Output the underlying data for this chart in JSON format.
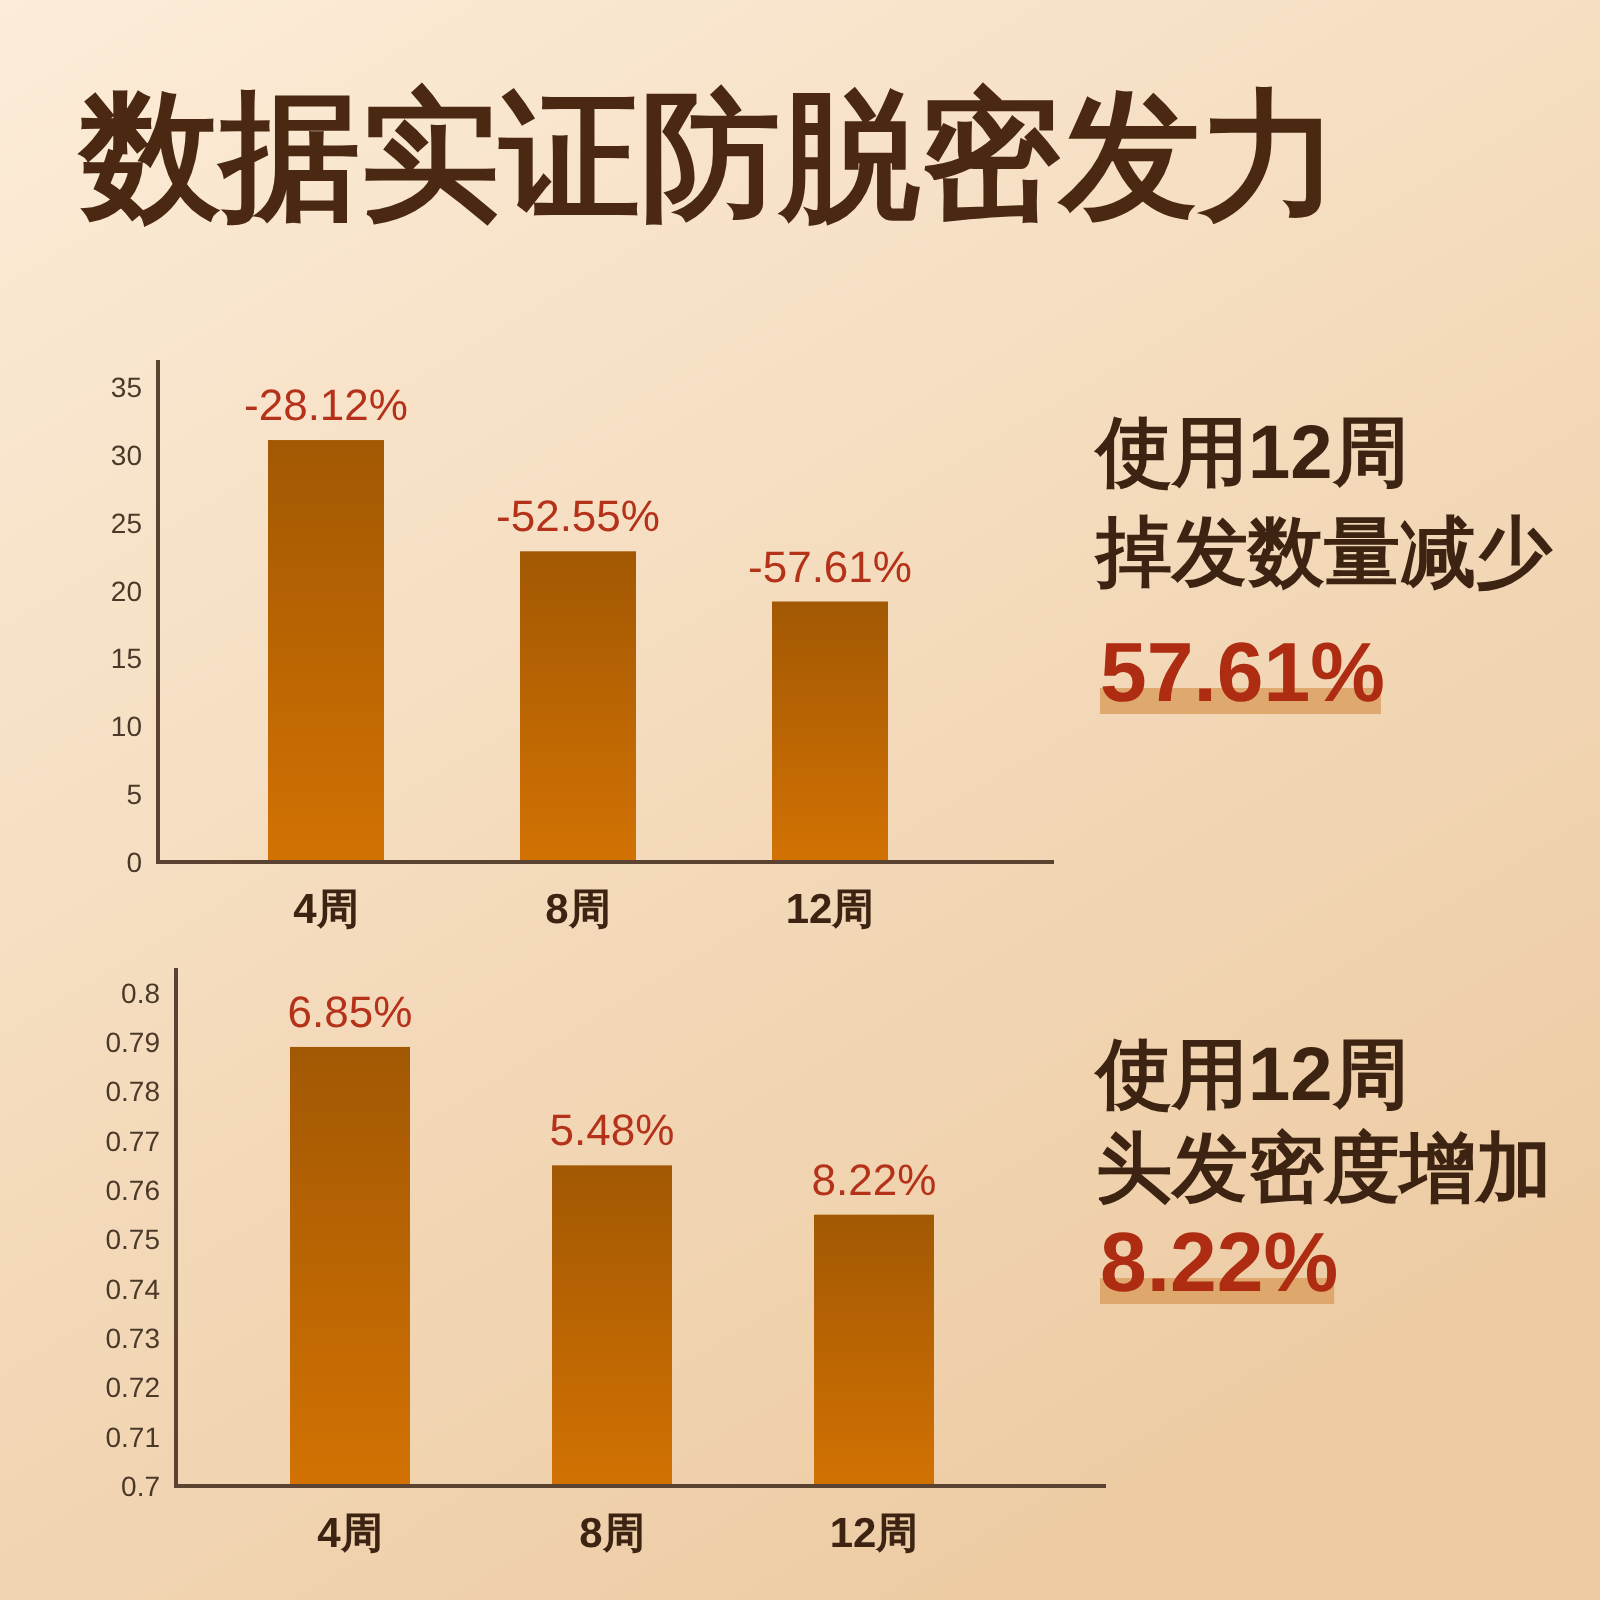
{
  "chart_data": [
    {
      "type": "bar",
      "title": "数据实证防脱密发力",
      "categories": [
        "4周",
        "8周",
        "12周"
      ],
      "values": [
        31.1,
        22.9,
        19.2
      ],
      "color": "#ba6503",
      "ylim": [
        0,
        37
      ],
      "yticks": [
        0,
        5,
        10,
        15,
        20,
        25,
        30,
        35
      ],
      "annotations": [
        {
          "text": "-28.12%",
          "x": "4周",
          "y": 31.1
        },
        {
          "text": "-52.55%",
          "x": "8周",
          "y": 22.9
        },
        {
          "text": "-57.61%",
          "x": "12周",
          "y": 19.2
        }
      ]
    },
    {
      "type": "other",
      "annotations": [
        "使用12周",
        "掉发数量减少",
        "57.61%"
      ]
    },
    {
      "type": "bar",
      "categories": [
        "4周",
        "8周",
        "12周"
      ],
      "values": [
        0.789,
        0.765,
        0.755
      ],
      "color": "#ba6503",
      "ylim": [
        0.7,
        0.805
      ],
      "yticks": [
        0.7,
        0.71,
        0.72,
        0.73,
        0.74,
        0.75,
        0.76,
        0.77,
        0.78,
        0.79,
        0.8
      ],
      "annotations": [
        {
          "text": "6.85%",
          "x": "4周",
          "y": 0.789
        },
        {
          "text": "5.48%",
          "x": "8周",
          "y": 0.765
        },
        {
          "text": "8.22%",
          "x": "12周",
          "y": 0.755
        }
      ]
    },
    {
      "type": "other",
      "annotations": [
        "使用12周",
        "头发密度增加",
        "8.22%"
      ]
    }
  ]
}
